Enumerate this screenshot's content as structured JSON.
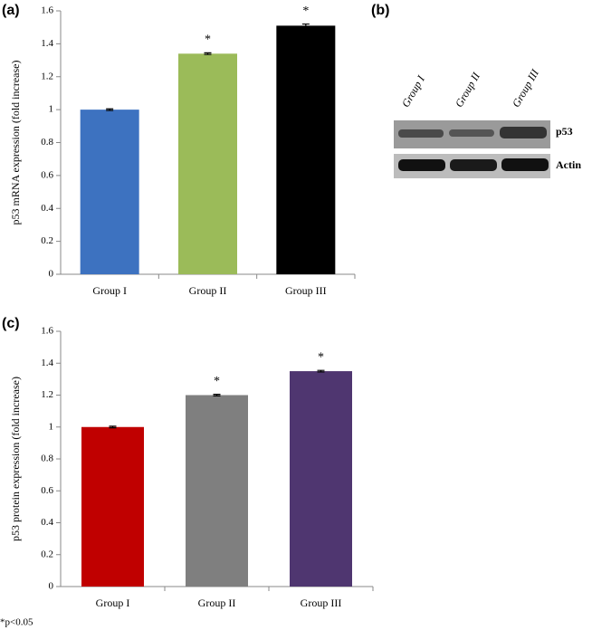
{
  "chart_data": [
    {
      "type": "bar",
      "panel_label": "(a)",
      "y_label": "p53 mRNA expression  (fold increase)",
      "categories": [
        "Group I",
        "Group II",
        "Group III"
      ],
      "values": [
        1.0,
        1.34,
        1.51
      ],
      "errors": [
        0.005,
        0.005,
        0.01
      ],
      "colors": [
        "#3d72c0",
        "#9bbb59",
        "#000000"
      ],
      "significance": [
        null,
        "*",
        "*"
      ],
      "ylim": [
        0,
        1.6
      ],
      "yticks": [
        0,
        0.2,
        0.4,
        0.6,
        0.8,
        1,
        1.2,
        1.4,
        1.6
      ]
    },
    {
      "type": "bar",
      "panel_label": "(c)",
      "y_label": "p53 protein expression  (fold increase)",
      "categories": [
        "Group I",
        "Group II",
        "Group III"
      ],
      "values": [
        1.0,
        1.2,
        1.35
      ],
      "errors": [
        0.005,
        0.005,
        0.005
      ],
      "colors": [
        "#c00000",
        "#7f7f7f",
        "#4f3670"
      ],
      "significance": [
        null,
        "*",
        "*"
      ],
      "ylim": [
        0,
        1.6
      ],
      "yticks": [
        0,
        0.2,
        0.4,
        0.6,
        0.8,
        1,
        1.2,
        1.4,
        1.6
      ]
    }
  ],
  "blot": {
    "panel_label": "(b)",
    "lanes": [
      "Group I",
      "Group II",
      "Group III"
    ],
    "bands": [
      "p53",
      "Actin"
    ]
  },
  "footnote": "*p<0.05"
}
